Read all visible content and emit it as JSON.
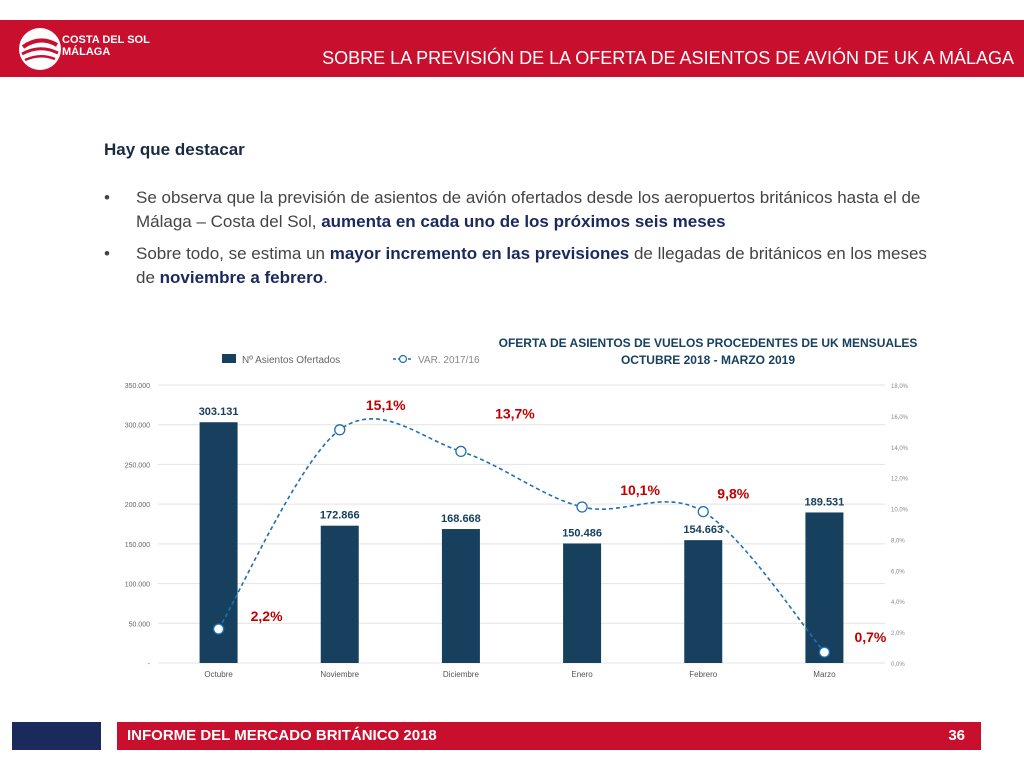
{
  "header": {
    "brand_line1": "COSTA DEL SOL",
    "brand_line2": "MÁLAGA",
    "title": "SOBRE LA PREVISIÓN DE LA OFERTA DE ASIENTOS DE AVIÓN DE UK A MÁLAGA"
  },
  "content": {
    "section_title": "Hay que destacar",
    "bullet_symbol": "•",
    "bullet1": {
      "text_a": "Se observa que la previsión de asientos de avión ofertados desde los aeropuertos británicos hasta el de Málaga – Costa del Sol, ",
      "highlight": "aumenta en cada uno de los próximos seis meses"
    },
    "bullet2": {
      "text_a": "Sobre todo, se estima un ",
      "highlight_a": "mayor incremento en las previsiones",
      "text_b": " de llegadas de británicos en los meses de ",
      "highlight_b": "noviembre a febrero",
      "text_c": "."
    }
  },
  "chart_data": {
    "type": "bar",
    "title_line1": "OFERTA DE ASIENTOS DE VUELOS PROCEDENTES DE UK MENSUALES",
    "title_line2": "OCTUBRE 2018 - MARZO 2019",
    "categories": [
      "Octubre",
      "Noviembre",
      "Diciembre",
      "Enero",
      "Febrero",
      "Marzo"
    ],
    "series": [
      {
        "name": "Nº Asientos Ofertados",
        "type": "bar",
        "axis": "left",
        "values": [
          303131,
          172866,
          168668,
          150486,
          154663,
          189531
        ],
        "labels": [
          "303.131",
          "172.866",
          "168.668",
          "150.486",
          "154.663",
          "189.531"
        ],
        "color": "#17405f"
      },
      {
        "name": "VAR. 2017/16",
        "type": "line",
        "axis": "right",
        "values": [
          2.2,
          15.1,
          13.7,
          10.1,
          9.8,
          0.7
        ],
        "labels": [
          "2,2%",
          "15,1%",
          "13,7%",
          "10,1%",
          "9,8%",
          "0,7%"
        ],
        "color": "#1f6fb2"
      }
    ],
    "y_left": {
      "range": [
        0,
        350000
      ],
      "ticks": [
        0,
        50000,
        100000,
        150000,
        200000,
        250000,
        300000,
        350000
      ],
      "tick_labels": [
        "-",
        "50.000",
        "100.000",
        "150.000",
        "200.000",
        "250.000",
        "300.000",
        "350.000"
      ]
    },
    "y_right": {
      "range": [
        0,
        18
      ],
      "ticks": [
        0,
        2,
        4,
        6,
        8,
        10,
        12,
        14,
        16,
        18
      ],
      "tick_labels": [
        "0,0%",
        "2,0%",
        "4,0%",
        "6,0%",
        "8,0%",
        "10,0%",
        "12,0%",
        "14,0%",
        "16,0%",
        "18,0%"
      ]
    },
    "legend_position": "top-left",
    "line_label_color": "#c00000",
    "bar_label_color": "#17405f"
  },
  "footer": {
    "title": "INFORME DEL MERCADO BRITÁNICO 2018",
    "page": "36"
  }
}
